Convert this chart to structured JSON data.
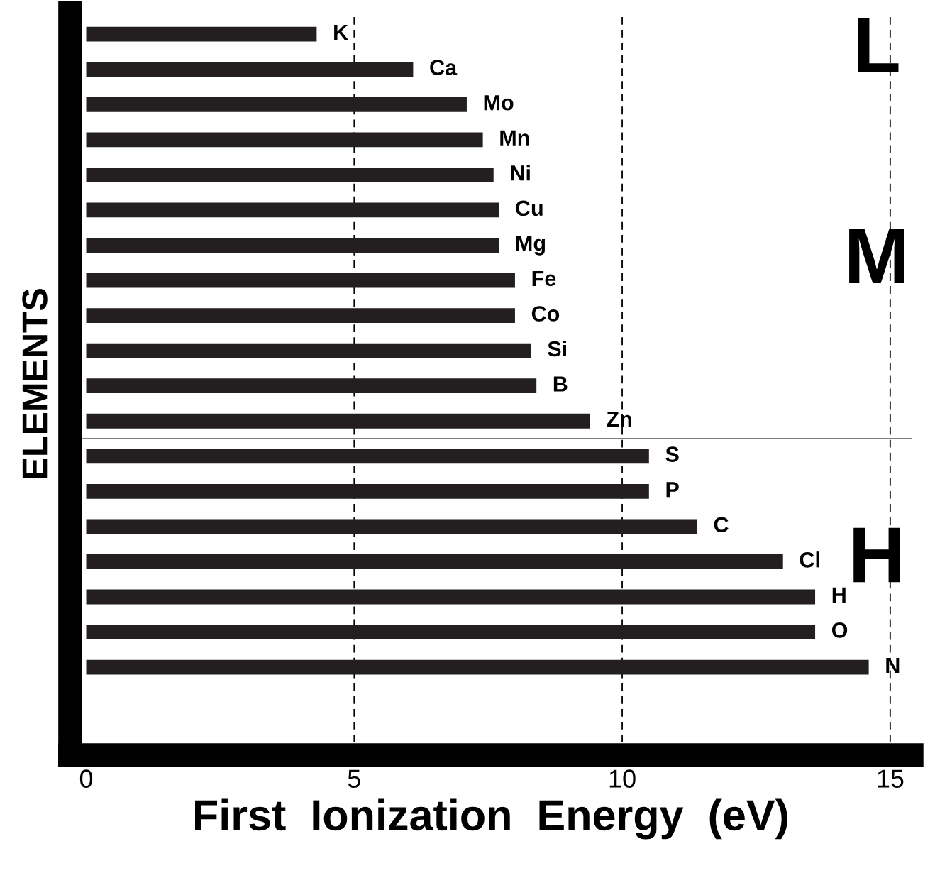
{
  "chart_data": {
    "type": "bar",
    "orientation": "horizontal",
    "xlabel": "First  Ionization  Energy  (eV)",
    "ylabel": "ELEMENTS",
    "categories": [
      "K",
      "Ca",
      "Mo",
      "Mn",
      "Ni",
      "Cu",
      "Mg",
      "Fe",
      "Co",
      "Si",
      "B",
      "Zn",
      "S",
      "P",
      "C",
      "Cl",
      "H",
      "O",
      "N"
    ],
    "values": [
      4.3,
      6.1,
      7.1,
      7.4,
      7.6,
      7.7,
      7.7,
      8.0,
      8.0,
      8.3,
      8.4,
      9.4,
      10.5,
      10.5,
      11.4,
      13.0,
      13.6,
      13.6,
      14.6
    ],
    "color": "#231f20",
    "xlim": [
      -0.3,
      15.4
    ],
    "xticks": [
      0,
      5,
      10,
      15
    ],
    "grid": "x",
    "line_style": "dashed",
    "tick_labels": "x",
    "annotations": [
      "L",
      "M",
      "H"
    ]
  }
}
